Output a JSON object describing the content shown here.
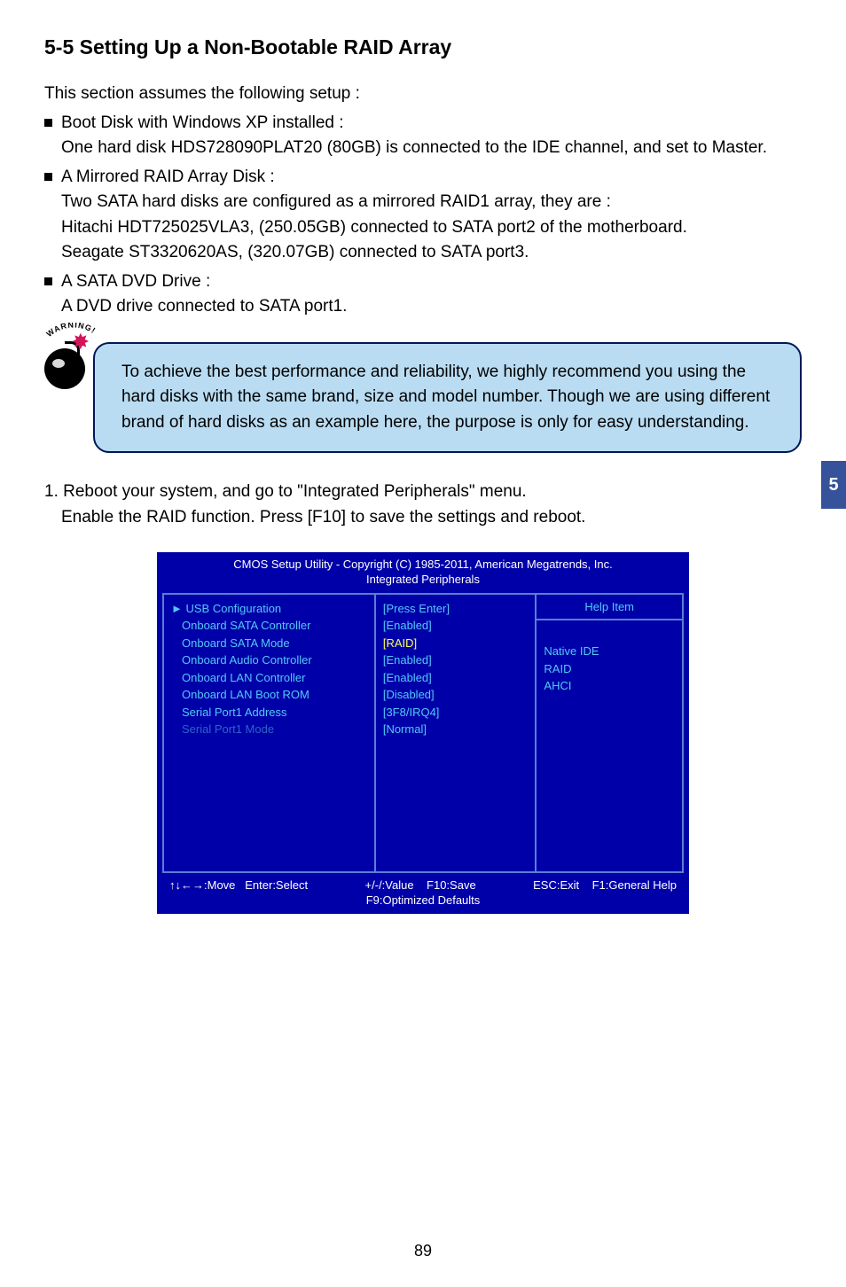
{
  "title": "5-5 Setting Up a Non-Bootable RAID Array",
  "intro": "This section assumes the following setup :",
  "bullets": [
    {
      "head": "Boot Disk with Windows XP installed :",
      "lines": [
        "One hard disk HDS728090PLAT20 (80GB) is connected to the IDE channel, and set to Master."
      ]
    },
    {
      "head": "A Mirrored RAID Array Disk :",
      "lines": [
        "Two SATA hard disks are configured as a mirrored RAID1 array, they are :",
        "Hitachi HDT725025VLA3, (250.05GB) connected to SATA port2 of the motherboard.",
        "Seagate ST3320620AS, (320.07GB) connected to SATA port3."
      ]
    },
    {
      "head": "A SATA DVD Drive :",
      "lines": [
        "A DVD drive connected to SATA port1."
      ]
    }
  ],
  "warning_label_top": "WARNING!",
  "warning_text": "To achieve the best performance and reliability, we highly recommend you using the hard disks with the same brand, size and model number. Though we are using different brand of hard disks as an example here, the purpose is only for easy understanding.",
  "side_tab": "5",
  "step1_a": "1. Reboot your system, and go to \"Integrated Peripherals\" menu.",
  "step1_b": "Enable the RAID function. Press [F10] to save the settings and reboot.",
  "bios": {
    "title_line1": "CMOS Setup Utility - Copyright (C) 1985-2011, American Megatrends, Inc.",
    "title_line2": "Integrated Peripherals",
    "left_items": [
      {
        "label": "► USB Configuration",
        "cls": "bios-cyan"
      },
      {
        "label": "Onboard SATA Controller",
        "cls": "bios-cyan",
        "indent": true
      },
      {
        "label": "Onboard SATA Mode",
        "cls": "bios-cyan",
        "indent": true
      },
      {
        "label": "Onboard Audio Controller",
        "cls": "bios-cyan",
        "indent": true
      },
      {
        "label": "Onboard LAN Controller",
        "cls": "bios-cyan",
        "indent": true
      },
      {
        "label": "Onboard LAN Boot ROM",
        "cls": "bios-cyan",
        "indent": true
      },
      {
        "label": "Serial Port1 Address",
        "cls": "bios-cyan",
        "indent": true
      },
      {
        "label": "Serial Port1 Mode",
        "cls": "",
        "indent": true,
        "color": "#2d63c9"
      }
    ],
    "mid_items": [
      {
        "label": "[Press Enter]",
        "cls": "bios-cyan"
      },
      {
        "label": "[Enabled]",
        "cls": "bios-cyan"
      },
      {
        "label": "[RAID]",
        "cls": "bios-yellow"
      },
      {
        "label": "[Enabled]",
        "cls": "bios-cyan"
      },
      {
        "label": "[Enabled]",
        "cls": "bios-cyan"
      },
      {
        "label": "[Disabled]",
        "cls": "bios-cyan"
      },
      {
        "label": "[3F8/IRQ4]",
        "cls": "bios-cyan"
      },
      {
        "label": "[Normal]",
        "cls": "bios-cyan"
      }
    ],
    "help_header": "Help Item",
    "right_items": [
      "Native IDE",
      "RAID",
      "AHCI"
    ],
    "footer_move": "↑↓←→:Move",
    "footer_select": "Enter:Select",
    "footer_value": "+/-/:Value",
    "footer_save": "F10:Save",
    "footer_exit": "ESC:Exit",
    "footer_help": "F1:General Help",
    "footer_line2": "F9:Optimized Defaults"
  },
  "page_number": "89"
}
